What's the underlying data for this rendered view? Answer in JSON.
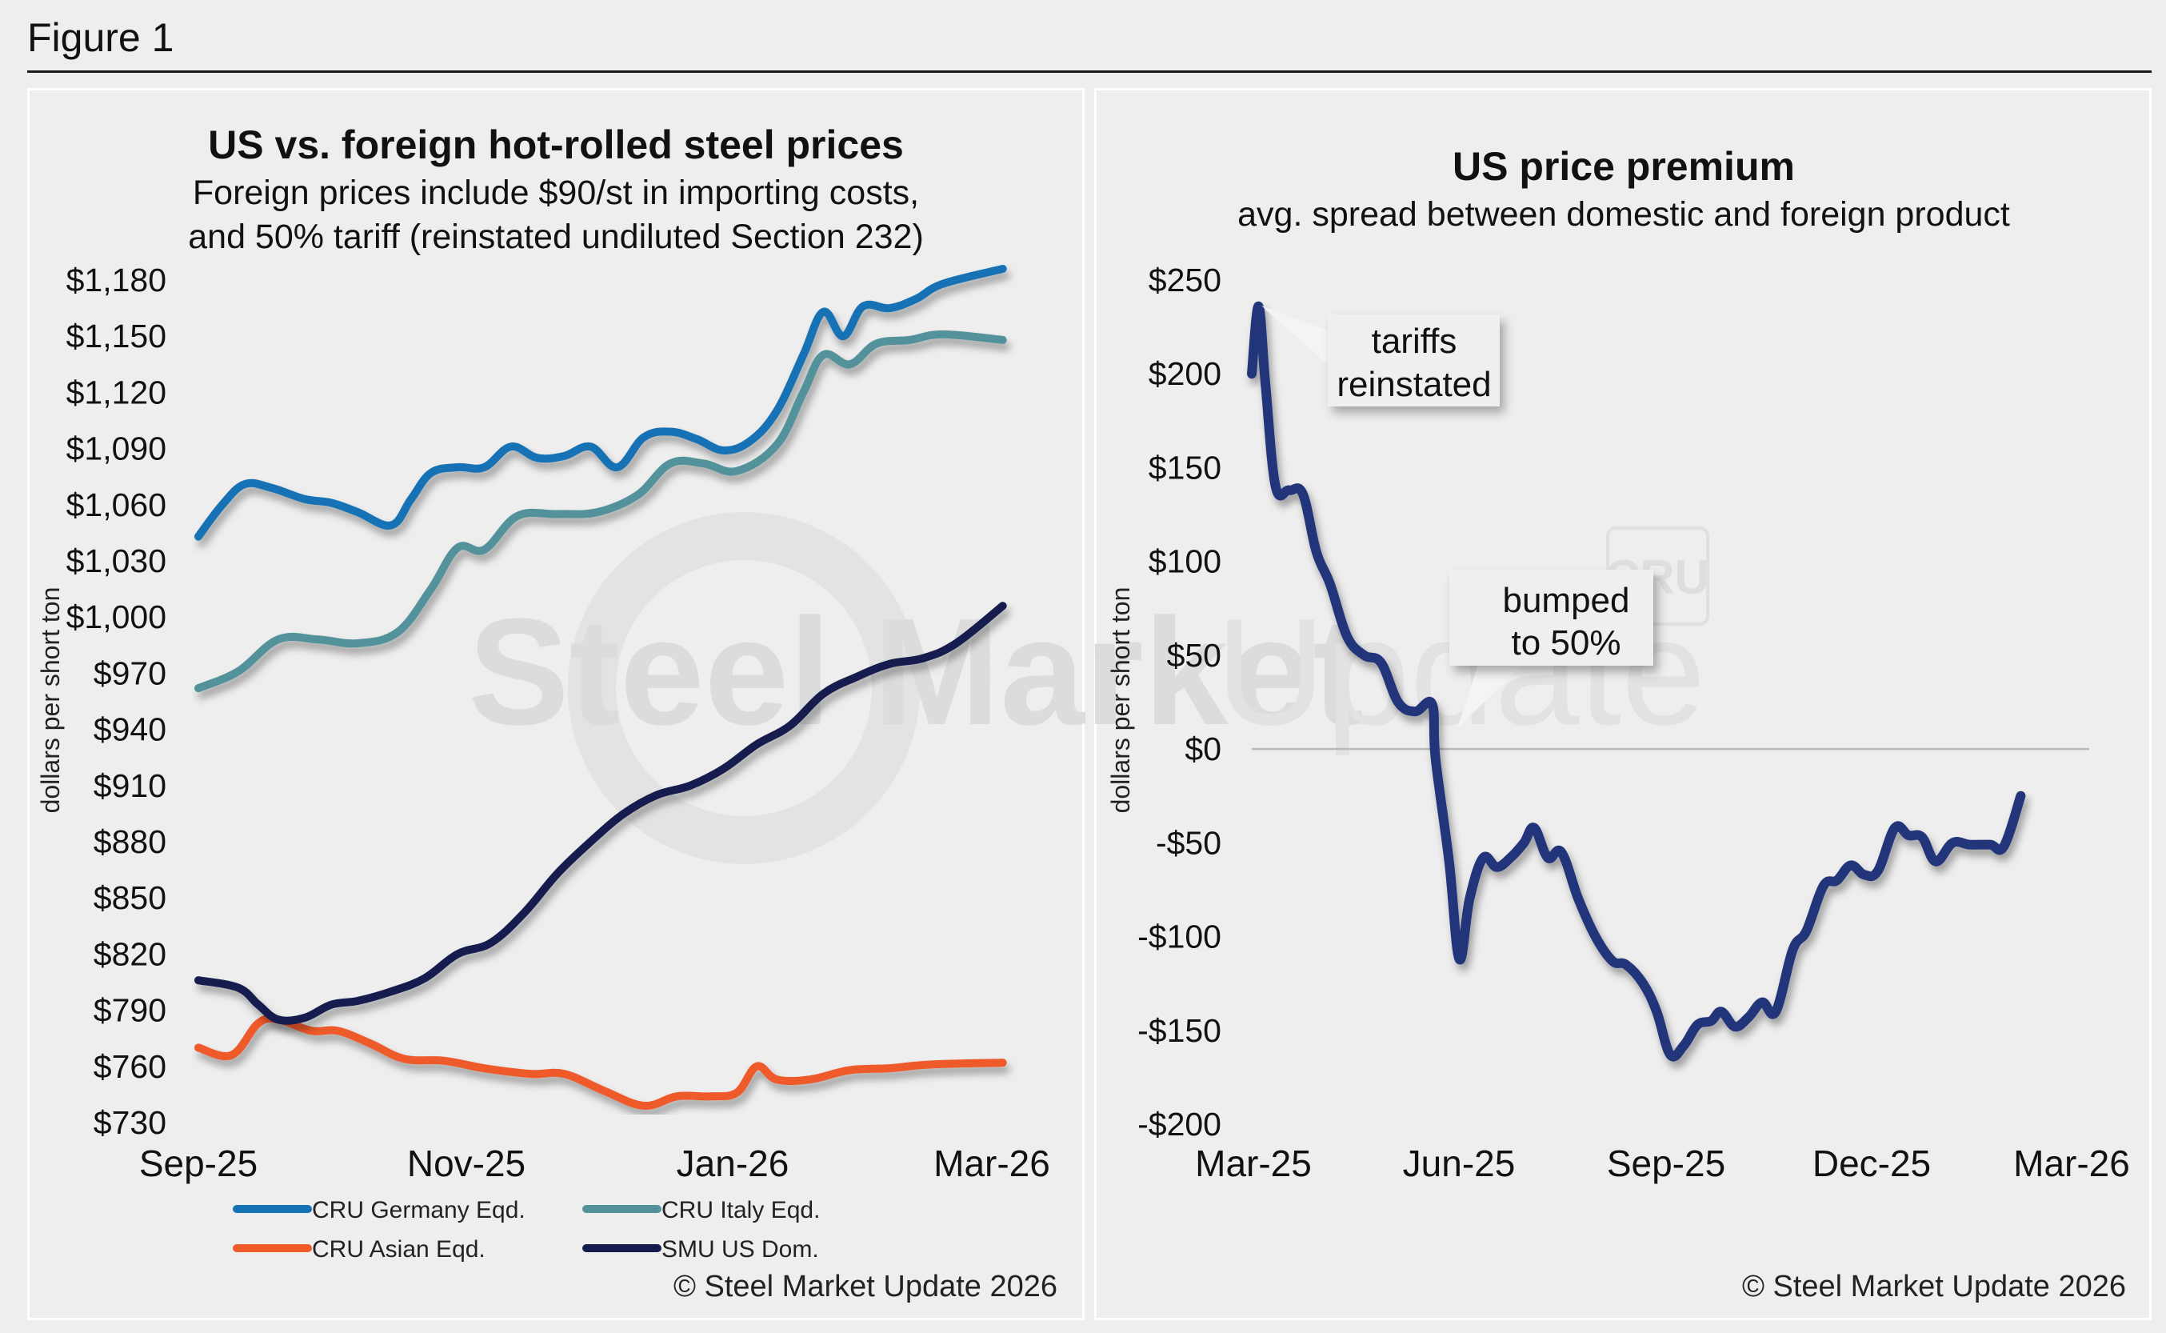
{
  "figure": {
    "title": "Figure 1",
    "watermark": {
      "bold": "Steel Market",
      "light": "Update",
      "badge": "CRU"
    }
  },
  "chart_data": [
    {
      "type": "line",
      "title": "US vs. foreign hot-rolled steel prices",
      "subtitle_lines": [
        "Foreign prices include $90/st in importing costs,",
        "and 50% tariff (reinstated undiluted Section 232)"
      ],
      "xlabel": "",
      "ylabel": "dollars per short ton",
      "x_ticks": [
        "Sep-25",
        "Nov-25",
        "Jan-26",
        "Mar-26"
      ],
      "x_range_months": [
        0,
        6.1
      ],
      "y_ticks": [
        "$1,180",
        "$1,150",
        "$1,120",
        "$1,090",
        "$1,060",
        "$1,030",
        "$1,000",
        "$970",
        "$940",
        "$910",
        "$880",
        "$850",
        "$820",
        "$790",
        "$760",
        "$730"
      ],
      "ylim": [
        730,
        1180
      ],
      "grid": false,
      "legend_position": "bottom",
      "legend": [
        "CRU Germany Eqd.",
        "CRU Italy Eqd.",
        "CRU Asian Eqd.",
        "SMU US Dom."
      ],
      "series": [
        {
          "name": "CRU Germany Eqd.",
          "color": "#1472b4",
          "points": [
            [
              0,
              1043
            ],
            [
              0.18,
              1060
            ],
            [
              0.35,
              1071
            ],
            [
              0.55,
              1069
            ],
            [
              0.8,
              1063
            ],
            [
              1.0,
              1061
            ],
            [
              1.2,
              1056
            ],
            [
              1.45,
              1049
            ],
            [
              1.6,
              1063
            ],
            [
              1.75,
              1077
            ],
            [
              1.95,
              1080
            ],
            [
              2.15,
              1080
            ],
            [
              2.35,
              1091
            ],
            [
              2.55,
              1085
            ],
            [
              2.75,
              1086
            ],
            [
              2.95,
              1091
            ],
            [
              3.15,
              1080
            ],
            [
              3.35,
              1096
            ],
            [
              3.55,
              1099
            ],
            [
              3.75,
              1095
            ],
            [
              3.95,
              1089
            ],
            [
              4.15,
              1094
            ],
            [
              4.35,
              1110
            ],
            [
              4.55,
              1140
            ],
            [
              4.7,
              1163
            ],
            [
              4.85,
              1150
            ],
            [
              5.0,
              1166
            ],
            [
              5.2,
              1165
            ],
            [
              5.4,
              1170
            ],
            [
              5.6,
              1178
            ],
            [
              6.05,
              1186
            ]
          ]
        },
        {
          "name": "CRU Italy Eqd.",
          "color": "#52929a",
          "points": [
            [
              0,
              962
            ],
            [
              0.3,
              971
            ],
            [
              0.6,
              988
            ],
            [
              0.9,
              988
            ],
            [
              1.2,
              986
            ],
            [
              1.5,
              992
            ],
            [
              1.75,
              1015
            ],
            [
              1.95,
              1037
            ],
            [
              2.15,
              1036
            ],
            [
              2.4,
              1054
            ],
            [
              2.7,
              1055
            ],
            [
              3.0,
              1056
            ],
            [
              3.3,
              1065
            ],
            [
              3.55,
              1082
            ],
            [
              3.8,
              1082
            ],
            [
              4.05,
              1078
            ],
            [
              4.35,
              1092
            ],
            [
              4.55,
              1120
            ],
            [
              4.7,
              1140
            ],
            [
              4.9,
              1135
            ],
            [
              5.1,
              1146
            ],
            [
              5.35,
              1148
            ],
            [
              5.6,
              1151
            ],
            [
              6.05,
              1148
            ]
          ]
        },
        {
          "name": "CRU Asian Eqd.",
          "color": "#ee5a2a",
          "points": [
            [
              0,
              770
            ],
            [
              0.25,
              766
            ],
            [
              0.45,
              783
            ],
            [
              0.6,
              785
            ],
            [
              0.85,
              779
            ],
            [
              1.05,
              779
            ],
            [
              1.3,
              772
            ],
            [
              1.55,
              764
            ],
            [
              1.85,
              763
            ],
            [
              2.15,
              759
            ],
            [
              2.5,
              756
            ],
            [
              2.75,
              756
            ],
            [
              3.05,
              747
            ],
            [
              3.35,
              739
            ],
            [
              3.6,
              744
            ],
            [
              3.85,
              744
            ],
            [
              4.05,
              746
            ],
            [
              4.2,
              760
            ],
            [
              4.35,
              753
            ],
            [
              4.6,
              753
            ],
            [
              4.9,
              758
            ],
            [
              5.2,
              759
            ],
            [
              5.5,
              761
            ],
            [
              6.05,
              762
            ]
          ]
        },
        {
          "name": "SMU US Dom.",
          "color": "#141b4d",
          "points": [
            [
              0,
              806
            ],
            [
              0.3,
              802
            ],
            [
              0.45,
              793
            ],
            [
              0.6,
              785
            ],
            [
              0.8,
              786
            ],
            [
              1.0,
              793
            ],
            [
              1.2,
              795
            ],
            [
              1.45,
              800
            ],
            [
              1.7,
              807
            ],
            [
              1.95,
              820
            ],
            [
              2.2,
              826
            ],
            [
              2.45,
              842
            ],
            [
              2.7,
              863
            ],
            [
              2.95,
              880
            ],
            [
              3.2,
              895
            ],
            [
              3.45,
              905
            ],
            [
              3.7,
              910
            ],
            [
              3.95,
              919
            ],
            [
              4.2,
              932
            ],
            [
              4.45,
              942
            ],
            [
              4.7,
              959
            ],
            [
              4.95,
              968
            ],
            [
              5.2,
              975
            ],
            [
              5.45,
              978
            ],
            [
              5.7,
              986
            ],
            [
              6.05,
              1006
            ]
          ]
        }
      ],
      "copyright": "© Steel Market Update 2026"
    },
    {
      "type": "line",
      "title": "US price premium",
      "subtitle_lines": [
        "avg. spread between domestic and foreign product"
      ],
      "xlabel": "",
      "ylabel": "dollars per short ton",
      "x_ticks": [
        "Mar-25",
        "Jun-25",
        "Sep-25",
        "Dec-25",
        "Mar-26"
      ],
      "x_range_months": [
        0,
        12.4
      ],
      "y_ticks": [
        "$250",
        "$200",
        "$150",
        "$100",
        "$50",
        "$0",
        "-$50",
        "-$100",
        "-$150",
        "-$200"
      ],
      "ylim": [
        -200,
        250
      ],
      "reference_line": 0,
      "grid": false,
      "series": [
        {
          "name": "US price premium",
          "color": "#24367a",
          "points": [
            [
              0,
              200
            ],
            [
              0.1,
              236
            ],
            [
              0.2,
              195
            ],
            [
              0.35,
              140
            ],
            [
              0.55,
              138
            ],
            [
              0.75,
              136
            ],
            [
              0.95,
              105
            ],
            [
              1.15,
              88
            ],
            [
              1.4,
              60
            ],
            [
              1.65,
              50
            ],
            [
              1.9,
              46
            ],
            [
              2.15,
              25
            ],
            [
              2.4,
              20
            ],
            [
              2.65,
              24
            ],
            [
              2.7,
              -5
            ],
            [
              2.9,
              -60
            ],
            [
              3.05,
              -112
            ],
            [
              3.2,
              -80
            ],
            [
              3.4,
              -58
            ],
            [
              3.6,
              -63
            ],
            [
              3.8,
              -58
            ],
            [
              4.0,
              -50
            ],
            [
              4.15,
              -42
            ],
            [
              4.35,
              -58
            ],
            [
              4.55,
              -55
            ],
            [
              4.8,
              -80
            ],
            [
              5.05,
              -100
            ],
            [
              5.3,
              -113
            ],
            [
              5.5,
              -115
            ],
            [
              5.75,
              -125
            ],
            [
              5.95,
              -140
            ],
            [
              6.15,
              -163
            ],
            [
              6.35,
              -158
            ],
            [
              6.55,
              -147
            ],
            [
              6.75,
              -145
            ],
            [
              6.9,
              -140
            ],
            [
              7.1,
              -148
            ],
            [
              7.3,
              -143
            ],
            [
              7.5,
              -135
            ],
            [
              7.7,
              -140
            ],
            [
              7.95,
              -107
            ],
            [
              8.15,
              -97
            ],
            [
              8.4,
              -73
            ],
            [
              8.6,
              -70
            ],
            [
              8.8,
              -62
            ],
            [
              9.0,
              -67
            ],
            [
              9.2,
              -65
            ],
            [
              9.45,
              -42
            ],
            [
              9.65,
              -46
            ],
            [
              9.85,
              -47
            ],
            [
              10.05,
              -60
            ],
            [
              10.3,
              -50
            ],
            [
              10.55,
              -51
            ],
            [
              10.85,
              -51
            ],
            [
              11.05,
              -52
            ],
            [
              11.3,
              -25
            ]
          ]
        }
      ],
      "annotations": [
        {
          "lines": [
            "tariffs",
            "reinstated"
          ],
          "at": [
            0.1,
            236
          ]
        },
        {
          "lines": [
            "bumped",
            "to 50%"
          ],
          "at": [
            2.7,
            10
          ]
        }
      ],
      "copyright": "© Steel Market Update 2026"
    }
  ]
}
